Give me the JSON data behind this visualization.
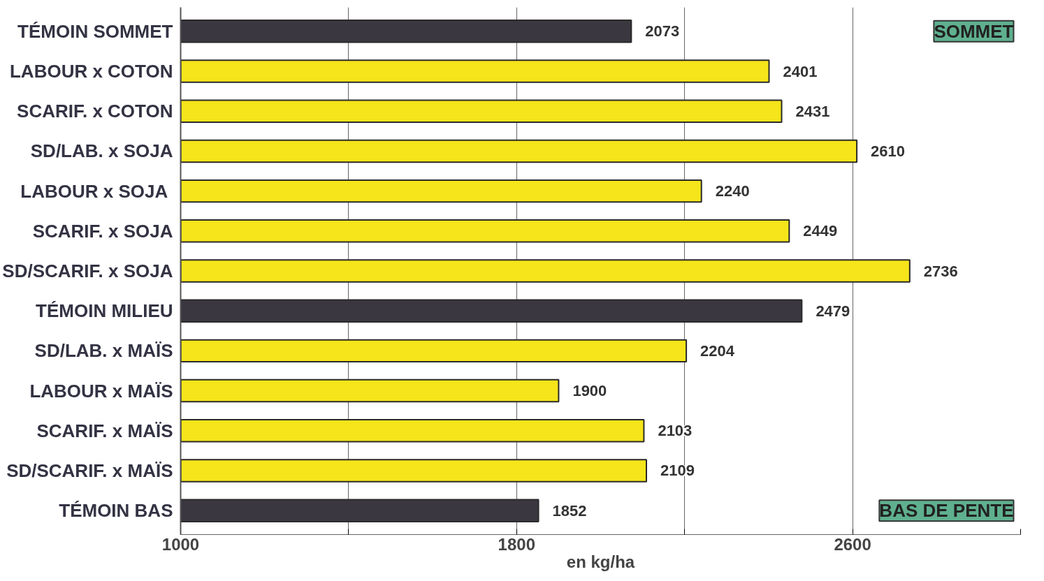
{
  "chart_data": {
    "type": "bar",
    "orientation": "horizontal",
    "categories": [
      "TÉMOIN SOMMET",
      "LABOUR x COTON",
      "SCARIF. x COTON",
      "SD/LAB. x SOJA",
      "LABOUR  x SOJA",
      "SCARIF. x SOJA",
      "SD/SCARIF. x SOJA",
      "TÉMOIN MILIEU",
      "SD/LAB. x MAÏS",
      "LABOUR x MAÏS",
      "SCARIF. x MAÏS",
      "SD/SCARIF. x MAÏS",
      "TÉMOIN BAS"
    ],
    "values": [
      2073,
      2401,
      2431,
      2610,
      2240,
      2449,
      2736,
      2479,
      2204,
      1900,
      2103,
      2109,
      1852
    ],
    "colors": [
      "#3b3740",
      "#f5e51a",
      "#f5e51a",
      "#f5e51a",
      "#f5e51a",
      "#f5e51a",
      "#f5e51a",
      "#3b3740",
      "#f5e51a",
      "#f5e51a",
      "#f5e51a",
      "#f5e51a",
      "#3b3740"
    ],
    "data_labels": true,
    "xlabel": "en kg/ha",
    "xlim": [
      1000,
      3000
    ],
    "xticks": [
      1000,
      {
        "value": 1400,
        "label": null
      },
      1800,
      {
        "value": 2200,
        "label": null
      },
      2600,
      {
        "value": 3000,
        "label": null
      }
    ],
    "grid": "x",
    "annotations": [
      "SOMMET",
      "BAS DE PENTE"
    ]
  }
}
